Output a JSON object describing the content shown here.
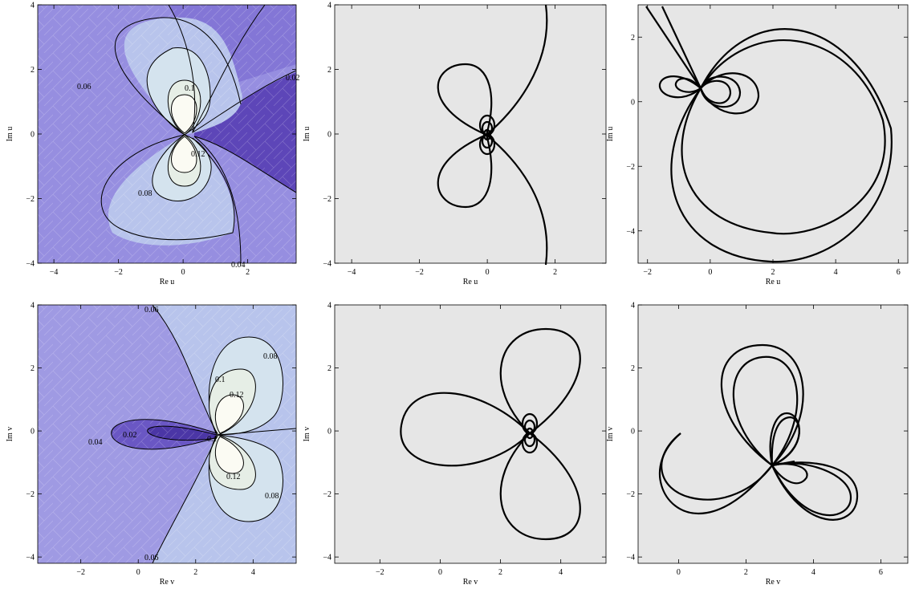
{
  "figure": {
    "panels": [
      {
        "id": "contour-u",
        "kind": "contour",
        "xlabel": "Re u",
        "ylabel": "Im u",
        "xticks": [
          -4,
          -2,
          0,
          2
        ],
        "yticks": [
          -4,
          -2,
          0,
          2,
          4
        ],
        "xlim": [
          -4.5,
          3.5
        ],
        "ylim": [
          -4.0,
          4.0
        ],
        "contour_labels": [
          "0.02",
          "0.04",
          "0.06",
          "0.08",
          "0.1",
          "0.12"
        ]
      },
      {
        "id": "curves-u-1",
        "kind": "curves",
        "xlabel": "Re u",
        "ylabel": "Im u",
        "xticks": [
          -4,
          -2,
          0,
          2
        ],
        "yticks": [
          -4,
          -2,
          0,
          2,
          4
        ],
        "xlim": [
          -4.5,
          3.5
        ],
        "ylim": [
          -4.0,
          4.0
        ]
      },
      {
        "id": "curves-u-2",
        "kind": "curves",
        "xlabel": "Re u",
        "ylabel": "Im u",
        "xticks": [
          -2,
          0,
          2,
          4,
          6
        ],
        "yticks": [
          -4,
          -2,
          0,
          2
        ],
        "xlim": [
          -2.3,
          6.3
        ],
        "ylim": [
          -5.0,
          3.0
        ]
      },
      {
        "id": "contour-v",
        "kind": "contour",
        "xlabel": "Re v",
        "ylabel": "Im v",
        "xticks": [
          -2,
          0,
          2,
          4
        ],
        "yticks": [
          -4,
          -2,
          0,
          2,
          4
        ],
        "xlim": [
          -3.5,
          5.5
        ],
        "ylim": [
          -4.2,
          4.0
        ],
        "contour_labels": [
          "0.02",
          "0.04",
          "0.06",
          "0.06",
          "0.08",
          "0.08",
          "0.1",
          "0.1",
          "0.12",
          "0.12"
        ]
      },
      {
        "id": "curves-v-1",
        "kind": "curves",
        "xlabel": "Re v",
        "ylabel": "Im v",
        "xticks": [
          -2,
          0,
          2,
          4
        ],
        "yticks": [
          -4,
          -2,
          0,
          2,
          4
        ],
        "xlim": [
          -3.5,
          5.5
        ],
        "ylim": [
          -4.2,
          4.0
        ]
      },
      {
        "id": "curves-v-2",
        "kind": "curves",
        "xlabel": "Re v",
        "ylabel": "Im v",
        "xticks": [
          0,
          2,
          4,
          6
        ],
        "yticks": [
          -4,
          -2,
          0,
          2,
          4
        ],
        "xlim": [
          -1.2,
          6.8
        ],
        "ylim": [
          -4.2,
          4.0
        ]
      }
    ]
  },
  "chart_data": [
    {
      "type": "contour",
      "xlabel": "Re u",
      "ylabel": "Im u",
      "xlim": [
        -4.5,
        3.5
      ],
      "ylim": [
        -4.0,
        4.0
      ],
      "levels": [
        0.02,
        0.04,
        0.06,
        0.08,
        0.1,
        0.12
      ],
      "label_positions": [
        {
          "text": "0.06",
          "x": -3.1,
          "y": 1.5
        },
        {
          "text": "0.1",
          "x": 0.2,
          "y": 1.4
        },
        {
          "text": "0.02",
          "x": 3.4,
          "y": 1.8
        },
        {
          "text": "0.12",
          "x": 0.5,
          "y": -0.6
        },
        {
          "text": "0.08",
          "x": -1.2,
          "y": -1.8
        },
        {
          "text": "0.04",
          "x": 1.8,
          "y": -4.0
        }
      ]
    },
    {
      "type": "line",
      "xlabel": "Re u",
      "ylabel": "Im u",
      "xlim": [
        -4.5,
        3.5
      ],
      "ylim": [
        -4.0,
        4.0
      ],
      "series": [
        {
          "x": [
            0.0,
            -1.1,
            -1.8,
            -1.5,
            -0.5,
            0.0
          ],
          "y": [
            0.0,
            0.0,
            1.2,
            2.0,
            1.9,
            0.0
          ]
        },
        {
          "x": [
            0.0,
            -1.1,
            -1.8,
            -1.5,
            -0.5,
            0.0
          ],
          "y": [
            0.0,
            0.0,
            -1.2,
            -2.0,
            -1.9,
            0.0
          ]
        },
        {
          "x": [
            0.0,
            1.0,
            1.7,
            1.8
          ],
          "y": [
            0.0,
            0.7,
            2.3,
            4.0
          ]
        },
        {
          "x": [
            0.0,
            1.0,
            1.7,
            1.8
          ],
          "y": [
            0.0,
            -0.7,
            -2.3,
            -4.0
          ]
        }
      ]
    },
    {
      "type": "line",
      "xlabel": "Re u",
      "ylabel": "Im u",
      "xlim": [
        -2.3,
        6.3
      ],
      "ylim": [
        -5.0,
        3.0
      ],
      "series": [
        {
          "x": [
            -0.4,
            2.2,
            5.6,
            2.2,
            -0.4
          ],
          "y": [
            0.5,
            2.6,
            -1.2,
            -4.0,
            0.5
          ]
        },
        {
          "x": [
            -0.4,
            1.7,
            5.5,
            1.7,
            -0.4
          ],
          "y": [
            0.5,
            2.3,
            -1.6,
            -5.0,
            0.5
          ]
        },
        {
          "x": [
            -0.4,
            -1.0,
            -1.4,
            -0.4
          ],
          "y": [
            0.5,
            0.0,
            0.5,
            0.5
          ]
        },
        {
          "x": [
            -0.4,
            0.6,
            0.1,
            -0.4
          ],
          "y": [
            0.5,
            0.2,
            -0.3,
            0.5
          ]
        },
        {
          "x": [
            -0.4,
            -2.1
          ],
          "y": [
            0.5,
            3.0
          ]
        },
        {
          "x": [
            -0.4,
            -1.6
          ],
          "y": [
            0.5,
            3.0
          ]
        }
      ]
    },
    {
      "type": "contour",
      "xlabel": "Re v",
      "ylabel": "Im v",
      "xlim": [
        -3.5,
        5.5
      ],
      "ylim": [
        -4.2,
        4.0
      ],
      "levels": [
        0.02,
        0.04,
        0.06,
        0.08,
        0.1,
        0.12
      ],
      "label_positions": [
        {
          "text": "0.06",
          "x": 0.5,
          "y": 3.9
        },
        {
          "text": "0.08",
          "x": 4.4,
          "y": 2.3
        },
        {
          "text": "0.1",
          "x": 2.7,
          "y": 1.6
        },
        {
          "text": "0.12",
          "x": 3.1,
          "y": 1.1
        },
        {
          "text": "0.04",
          "x": -1.5,
          "y": -0.3
        },
        {
          "text": "0.02",
          "x": -0.3,
          "y": -0.1
        },
        {
          "text": "0.1",
          "x": 2.6,
          "y": -0.2
        },
        {
          "text": "0.12",
          "x": 3.1,
          "y": -1.3
        },
        {
          "text": "0.08",
          "x": 4.4,
          "y": -2.0
        },
        {
          "text": "0.06",
          "x": 0.4,
          "y": -3.9
        }
      ]
    },
    {
      "type": "line",
      "xlabel": "Re v",
      "ylabel": "Im v",
      "xlim": [
        -3.5,
        5.5
      ],
      "ylim": [
        -4.2,
        4.0
      ],
      "series": [
        {
          "x": [
            3.0,
            1.0,
            -1.8,
            0.0,
            3.0
          ],
          "y": [
            0.0,
            0.7,
            0.0,
            -1.3,
            0.0
          ]
        },
        {
          "x": [
            3.0,
            2.0,
            3.6,
            5.0,
            3.0
          ],
          "y": [
            0.0,
            2.4,
            3.3,
            1.5,
            0.0
          ]
        },
        {
          "x": [
            3.0,
            2.0,
            3.6,
            5.0,
            3.0
          ],
          "y": [
            0.0,
            -2.4,
            -3.3,
            -1.5,
            0.0
          ]
        }
      ]
    },
    {
      "type": "line",
      "xlabel": "Re v",
      "ylabel": "Im v",
      "xlim": [
        -1.2,
        6.8
      ],
      "ylim": [
        -4.2,
        4.0
      ],
      "series": [
        {
          "x": [
            0.0,
            -0.7,
            1.0,
            2.8
          ],
          "y": [
            0.0,
            -1.0,
            -2.6,
            -1.0
          ]
        },
        {
          "x": [
            2.8,
            1.4,
            2.5,
            3.9,
            2.8
          ],
          "y": [
            -1.0,
            1.7,
            2.8,
            2.1,
            -1.0
          ]
        },
        {
          "x": [
            2.8,
            4.1,
            5.6,
            4.6,
            2.8
          ],
          "y": [
            -1.0,
            -0.9,
            -2.0,
            -2.9,
            -1.0
          ]
        },
        {
          "x": [
            2.8,
            3.0,
            3.7,
            3.3,
            2.8
          ],
          "y": [
            -1.0,
            0.7,
            0.6,
            -0.6,
            -1.0
          ]
        }
      ]
    }
  ]
}
